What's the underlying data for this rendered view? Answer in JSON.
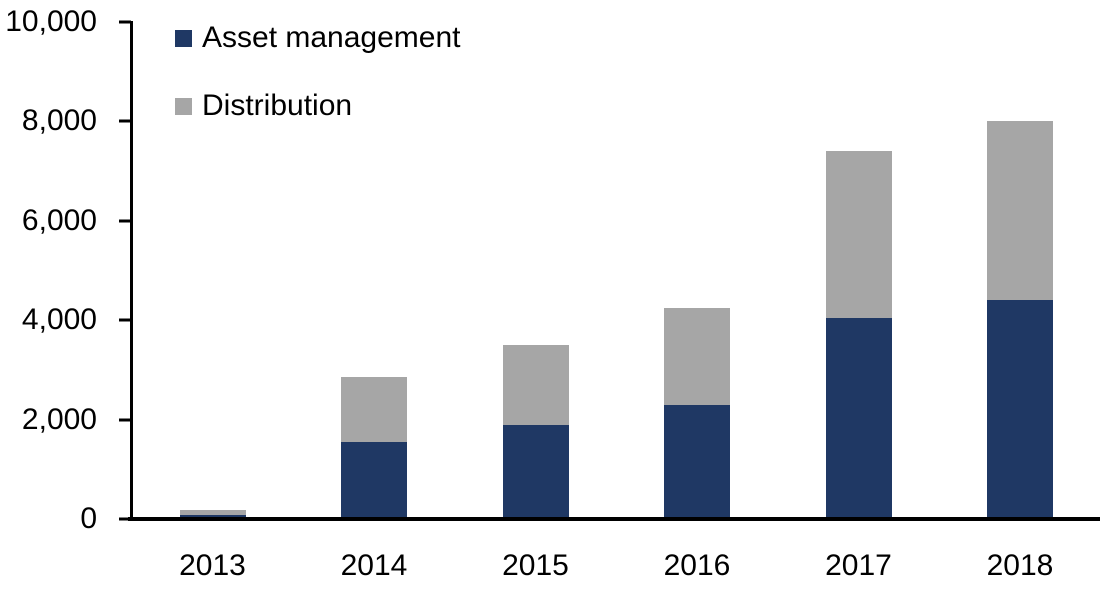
{
  "chart_data": {
    "type": "bar",
    "stacked": true,
    "title": "",
    "xlabel": "",
    "ylabel": "",
    "categories": [
      "2013",
      "2014",
      "2015",
      "2016",
      "2017",
      "2018"
    ],
    "series": [
      {
        "name": "Asset management",
        "color": "#1F3864",
        "values": [
          80,
          1550,
          1900,
          2300,
          4050,
          4400
        ]
      },
      {
        "name": "Distribution",
        "color": "#A6A6A6",
        "values": [
          110,
          1300,
          1600,
          1950,
          3350,
          3600
        ]
      }
    ],
    "totals": [
      190,
      2850,
      3500,
      4250,
      7400,
      8000
    ],
    "ylim": [
      0,
      10000
    ],
    "ytick_interval": 2000,
    "ytick_labels": [
      "0",
      "2,000",
      "4,000",
      "6,000",
      "8,000",
      "10,000"
    ],
    "legend_position": "top-left",
    "grid": false,
    "axis_color": "#000000",
    "background_color": "#FFFFFF"
  }
}
